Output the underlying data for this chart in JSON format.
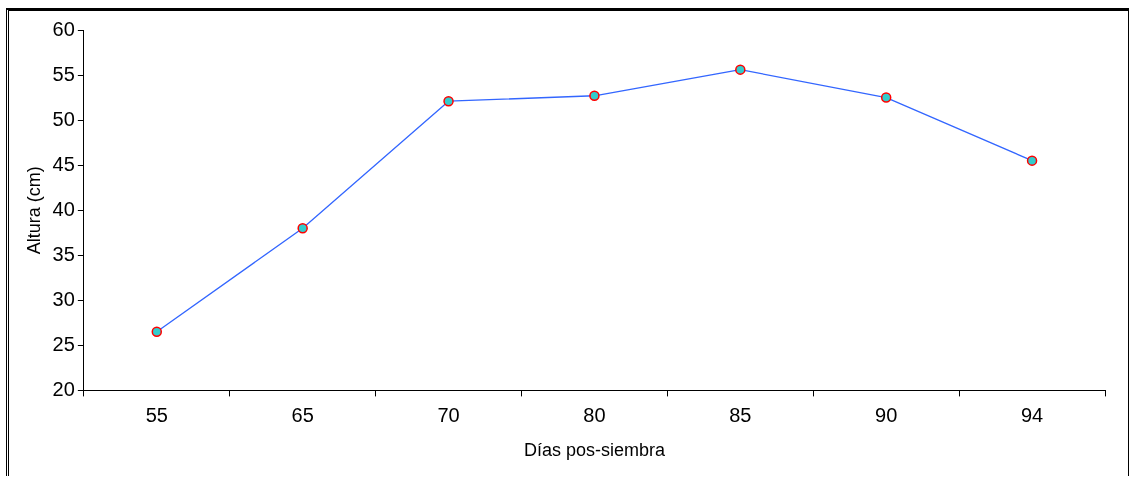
{
  "chart_data": {
    "type": "line",
    "xlabel": "Días pos-siembra",
    "ylabel": "Altura (cm)",
    "categories": [
      "55",
      "65",
      "70",
      "80",
      "85",
      "90",
      "94"
    ],
    "series": [
      {
        "color": "#3366ff",
        "values": [
          26.5,
          38,
          52.1,
          52.7,
          55.6,
          52.5,
          45.5
        ]
      }
    ],
    "ylim": [
      20,
      60
    ],
    "yticks": [
      20,
      25,
      30,
      35,
      40,
      45,
      50,
      55,
      60
    ],
    "grid": false,
    "legend": false,
    "marker": "circle",
    "line_style": "solid"
  }
}
